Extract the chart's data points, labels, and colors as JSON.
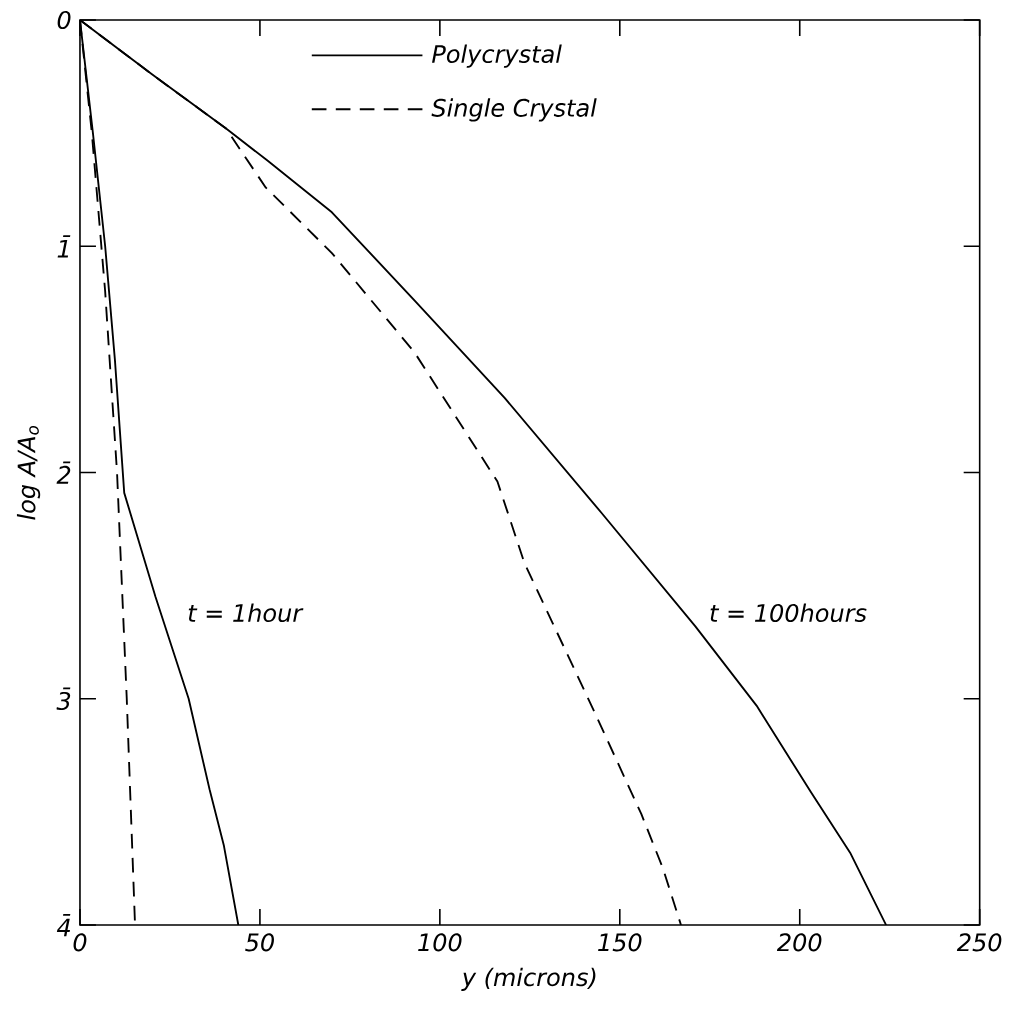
{
  "chart_data": {
    "type": "line",
    "xlabel": "y  (microns)",
    "ylabel": "log A/A$_{o}$",
    "xlim": [
      0,
      250
    ],
    "ylim": [
      4,
      0
    ],
    "xticks": [
      0,
      50,
      100,
      150,
      200,
      250
    ],
    "yticks": [
      0,
      {
        "value": 1,
        "label": "1̄"
      },
      {
        "value": 2,
        "label": "2̄"
      },
      {
        "value": 3,
        "label": "3̄"
      },
      {
        "value": 4,
        "label": "4̄"
      }
    ],
    "series": [
      {
        "name": "Polycrystal",
        "color": "#000000",
        "line_style": "solid",
        "x": [
          0,
          20,
          40.6,
          52,
          70,
          93,
          118,
          145,
          171,
          188,
          203,
          214,
          224
        ],
        "values": [
          0,
          0.24,
          0.48,
          0.62,
          0.85,
          1.24,
          1.67,
          2.18,
          2.68,
          3.03,
          3.41,
          3.68,
          4
        ]
      },
      {
        "name": "Single Crystal",
        "color": "#000000",
        "line_style": "dashed",
        "x": [
          0,
          20,
          40.6,
          51.6,
          70,
          93,
          116,
          123.5,
          143,
          156,
          162,
          167
        ],
        "values": [
          0,
          0.24,
          0.48,
          0.74,
          1.03,
          1.47,
          2.04,
          2.4,
          3.06,
          3.51,
          3.75,
          4
        ]
      },
      {
        "color": "#000000",
        "line_style": "solid",
        "x": [
          0,
          3.6,
          7,
          9.7,
          12.3,
          21,
          30.2,
          36,
          40,
          44
        ],
        "values": [
          0,
          0.5,
          1,
          1.5,
          2.09,
          2.55,
          3,
          3.4,
          3.65,
          4
        ]
      },
      {
        "color": "#000000",
        "line_style": "dashed",
        "x": [
          0,
          3.3,
          7,
          10.3,
          13,
          15.3
        ],
        "values": [
          0,
          0.5,
          1.2,
          2,
          3,
          4
        ]
      }
    ],
    "legend": "top",
    "annotations": [
      "t = 1hour",
      "t = 100hours"
    ]
  }
}
